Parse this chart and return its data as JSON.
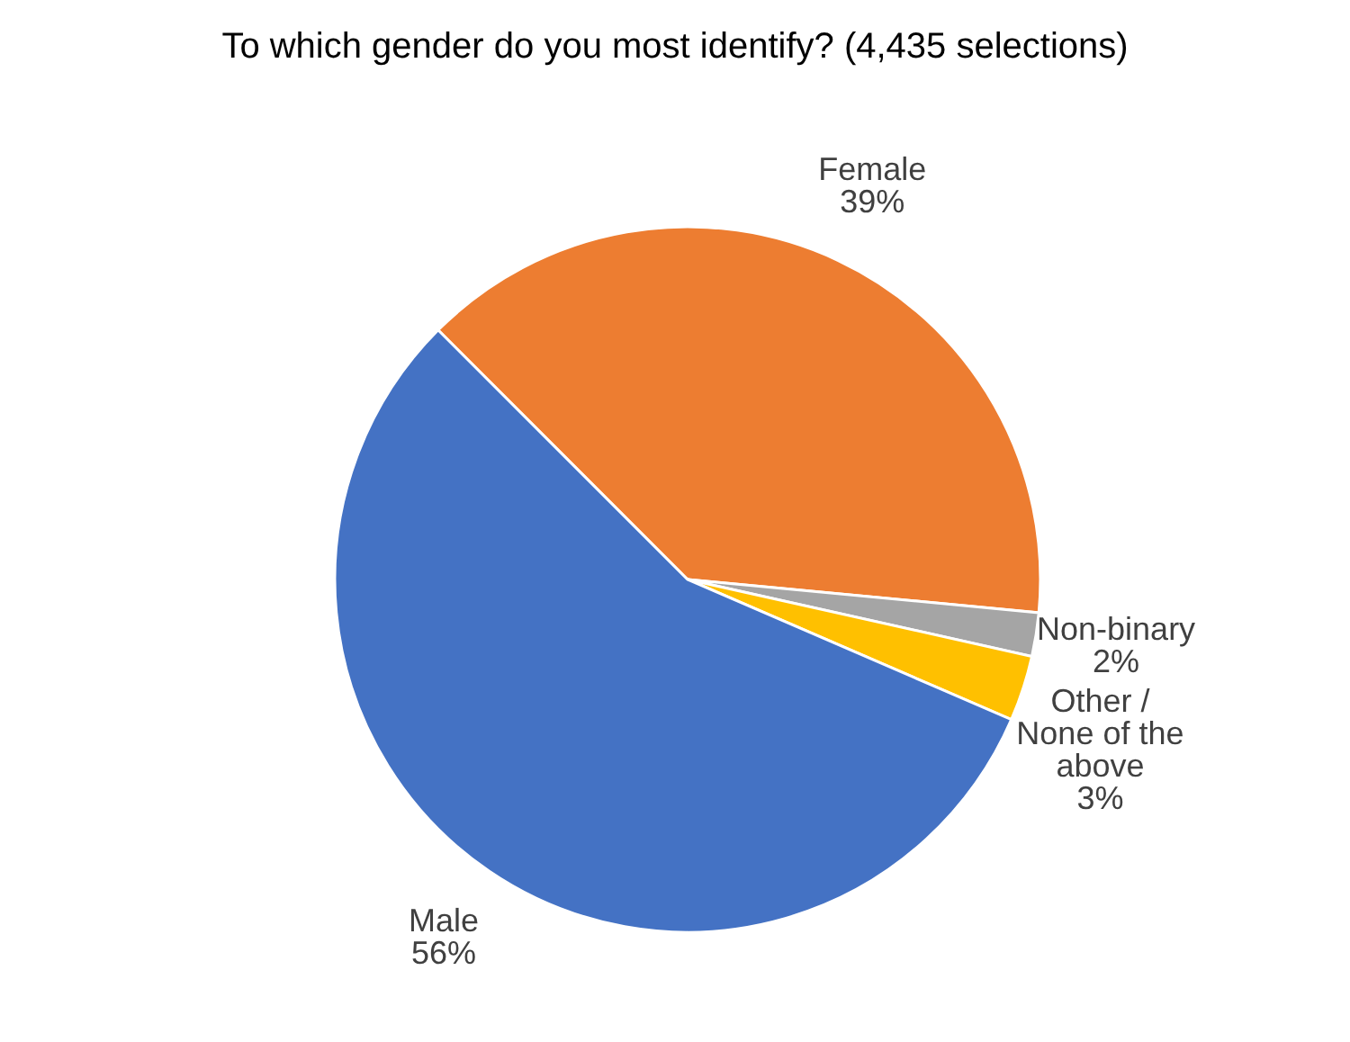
{
  "chart_data": {
    "type": "pie",
    "title": "To which gender do you most identify? (4,435 selections)",
    "categories": [
      "Female",
      "Non-binary",
      "Other / None of the above",
      "Male"
    ],
    "values": [
      39,
      2,
      3,
      56
    ],
    "colors": [
      "#ed7d31",
      "#a5a5a5",
      "#ffc000",
      "#4472c4"
    ],
    "value_labels": [
      "39%",
      "2%",
      "3%",
      "56%"
    ]
  }
}
